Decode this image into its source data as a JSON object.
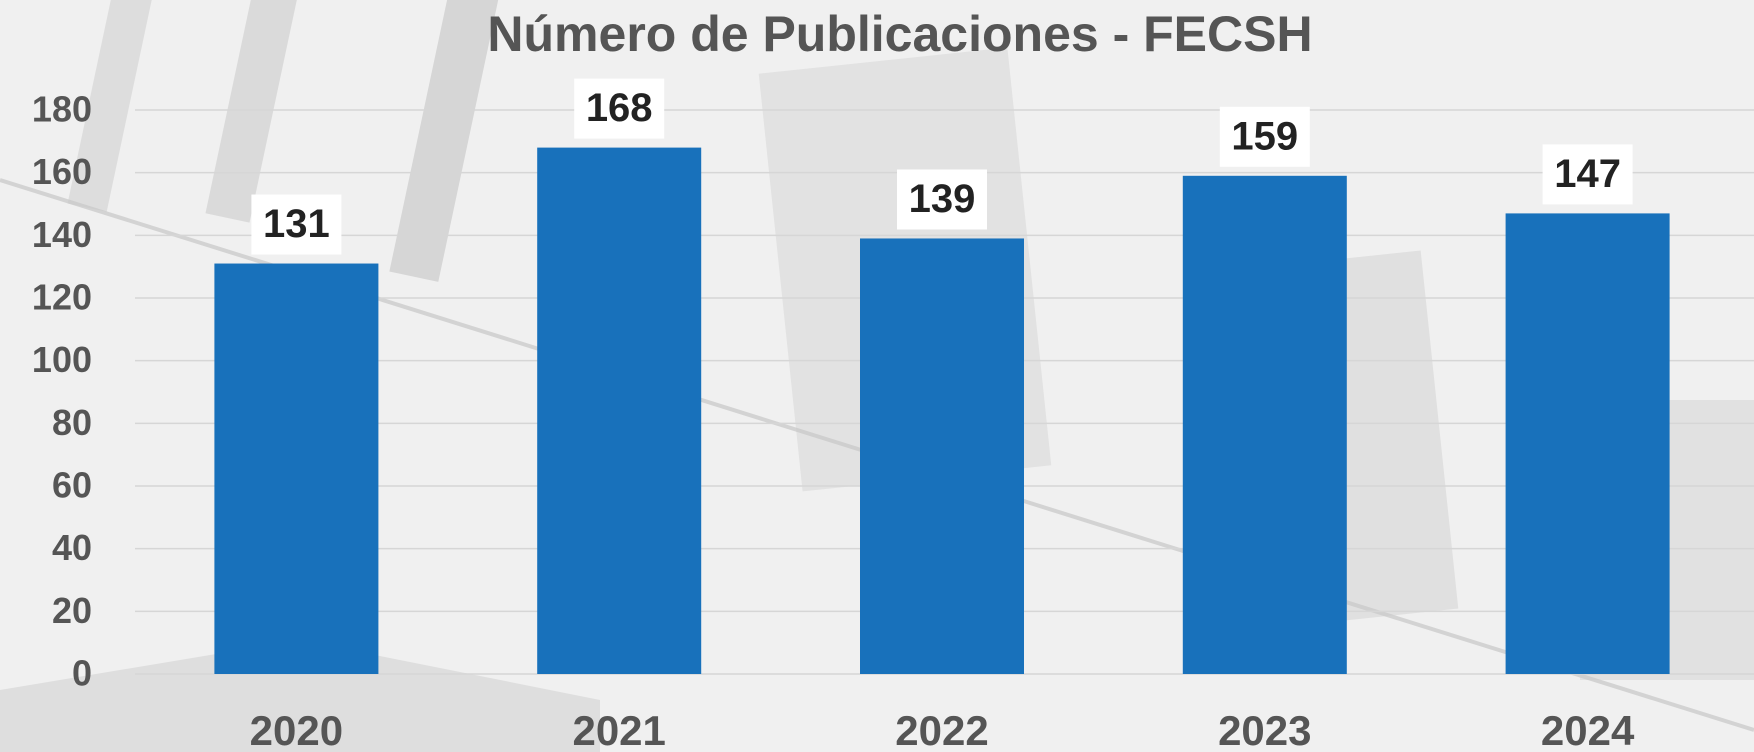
{
  "chart_data": {
    "type": "bar",
    "title": "Número de Publicaciones  - FECSH",
    "categories": [
      "2020",
      "2021",
      "2022",
      "2023",
      "2024"
    ],
    "values": [
      131,
      168,
      139,
      159,
      147
    ],
    "color": "#1871bb",
    "ylim": [
      0,
      180
    ],
    "yticks": [
      0,
      20,
      40,
      60,
      80,
      100,
      120,
      140,
      160,
      180
    ],
    "grid": true
  }
}
